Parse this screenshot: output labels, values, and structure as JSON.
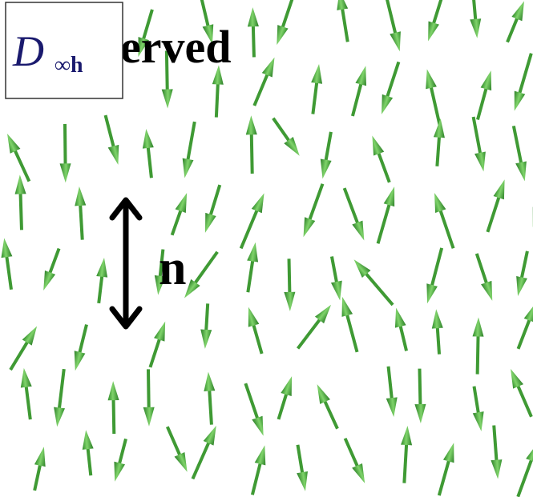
{
  "box_label": {
    "symbol": "D",
    "subscript": "∞h"
  },
  "background_text": "erved",
  "director_label": "n"
}
